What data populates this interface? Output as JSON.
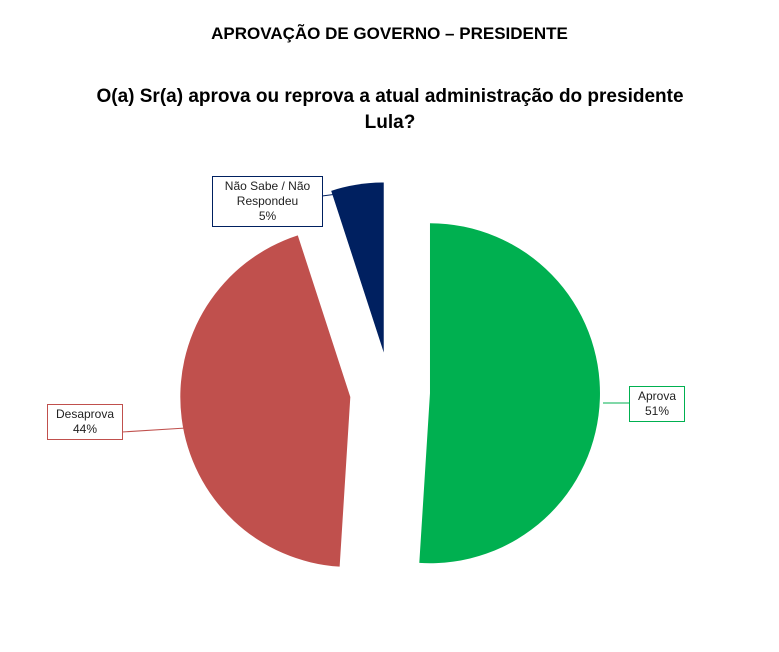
{
  "chart_data": {
    "type": "pie",
    "title": "APROVAÇÃO DE GOVERNO – PRESIDENTE",
    "subtitle": "O(a) Sr(a) aprova ou reprova a atual administração do presidente Lula?",
    "categories": [
      "Aprova",
      "Desaprova",
      "Não Sabe / Não Respondeu"
    ],
    "values": [
      51,
      44,
      5
    ],
    "value_labels": [
      "51%",
      "44%",
      "5%"
    ],
    "colors": [
      "#00b050",
      "#c0504d",
      "#002060"
    ]
  }
}
